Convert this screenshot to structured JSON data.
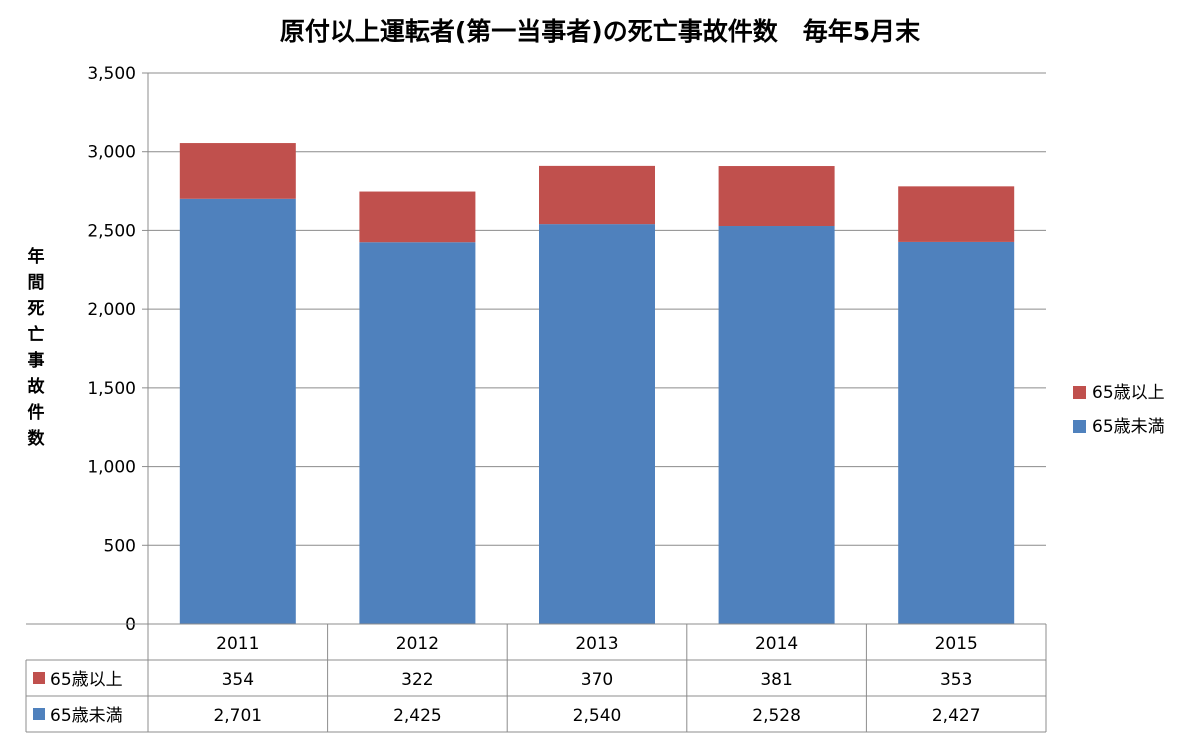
{
  "chart_data": {
    "type": "bar",
    "stacked": true,
    "title": "原付以上運転者(第一当事者)の死亡事故件数　毎年5月末",
    "ylabel": "年間死亡事故件数",
    "xlabel": "",
    "categories": [
      "2011",
      "2012",
      "2013",
      "2014",
      "2015"
    ],
    "series": [
      {
        "name": "65歳未満",
        "values": [
          2701,
          2425,
          2540,
          2528,
          2427
        ],
        "color": "#4F81BD"
      },
      {
        "name": "65歳以上",
        "values": [
          354,
          322,
          370,
          381,
          353
        ],
        "color": "#C0504D"
      }
    ],
    "ylim": [
      0,
      3500
    ],
    "yticks": [
      0,
      500,
      1000,
      1500,
      2000,
      2500,
      3000,
      3500
    ],
    "ytick_labels": [
      "0",
      "500",
      "1,000",
      "1,500",
      "2,000",
      "2,500",
      "3,000",
      "3,500"
    ],
    "legend": {
      "placement": "right",
      "entries": [
        {
          "name": "65歳以上",
          "color": "#C0504D"
        },
        {
          "name": "65歳未満",
          "color": "#4F81BD"
        }
      ]
    },
    "data_table": {
      "rows": [
        {
          "name": "65歳以上",
          "color": "#C0504D",
          "cells": [
            "354",
            "322",
            "370",
            "381",
            "353"
          ]
        },
        {
          "name": "65歳未満",
          "color": "#4F81BD",
          "cells": [
            "2,701",
            "2,425",
            "2,540",
            "2,528",
            "2,427"
          ]
        }
      ]
    },
    "grid": true
  }
}
